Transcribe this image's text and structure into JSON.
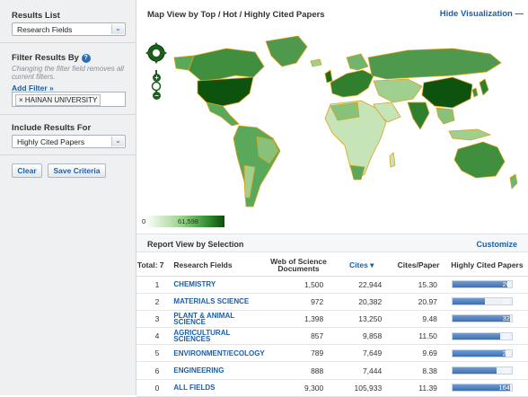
{
  "sidebar": {
    "results_list_label": "Results List",
    "results_list_value": "Research Fields",
    "filter_label": "Filter Results By",
    "filter_hint": "Changing the filter field removes all current filters.",
    "add_filter": "Add Filter »",
    "chip": "× HAINAN UNIVERSITY",
    "include_label": "Include Results For",
    "include_value": "Highly Cited Papers",
    "clear_btn": "Clear",
    "save_btn": "Save Criteria"
  },
  "header": {
    "title": "Map View by Top / Hot / Highly Cited Papers",
    "hide_visualization": "Hide Visualization —"
  },
  "map": {
    "legend_min": "0",
    "legend_max": "61,598",
    "zoom_plus": "+",
    "zoom_minus": "−"
  },
  "report": {
    "title": "Report View by Selection",
    "customize": "Customize",
    "headers": {
      "total": "Total: 7",
      "field": "Research Fields",
      "docs": "Web of Science Documents",
      "cites": "Cites ▾",
      "cites_per_paper": "Cites/Paper",
      "hcp": "Highly Cited Papers"
    },
    "rows": [
      {
        "n": "1",
        "field": "CHEMISTRY",
        "docs": "1,500",
        "cites": "22,944",
        "cpp": "15.30",
        "hcp": "26",
        "frac": 0.93
      },
      {
        "n": "2",
        "field": "MATERIALS SCIENCE",
        "docs": "972",
        "cites": "20,382",
        "cpp": "20.97",
        "hcp": "15",
        "frac": 0.55
      },
      {
        "n": "3",
        "field": "PLANT & ANIMAL SCIENCE",
        "docs": "1,398",
        "cites": "13,250",
        "cpp": "9.48",
        "hcp": "32",
        "frac": 0.97
      },
      {
        "n": "4",
        "field": "AGRICULTURAL SCIENCES",
        "docs": "857",
        "cites": "9,858",
        "cpp": "11.50",
        "hcp": "22",
        "frac": 0.8
      },
      {
        "n": "5",
        "field": "ENVIRONMENT/ECOLOGY",
        "docs": "789",
        "cites": "7,649",
        "cpp": "9.69",
        "hcp": "25",
        "frac": 0.9
      },
      {
        "n": "6",
        "field": "ENGINEERING",
        "docs": "888",
        "cites": "7,444",
        "cpp": "8.38",
        "hcp": "20",
        "frac": 0.75
      },
      {
        "n": "0",
        "field": "ALL FIELDS",
        "docs": "9,300",
        "cites": "105,933",
        "cpp": "11.39",
        "hcp": "164",
        "frac": 0.97
      }
    ]
  },
  "colors": {
    "map_dark": "#0d520d",
    "map_mid": "#4ea34e",
    "map_light": "#c5e5b8",
    "map_border": "#d9a21a",
    "link": "#1b5fa8"
  }
}
